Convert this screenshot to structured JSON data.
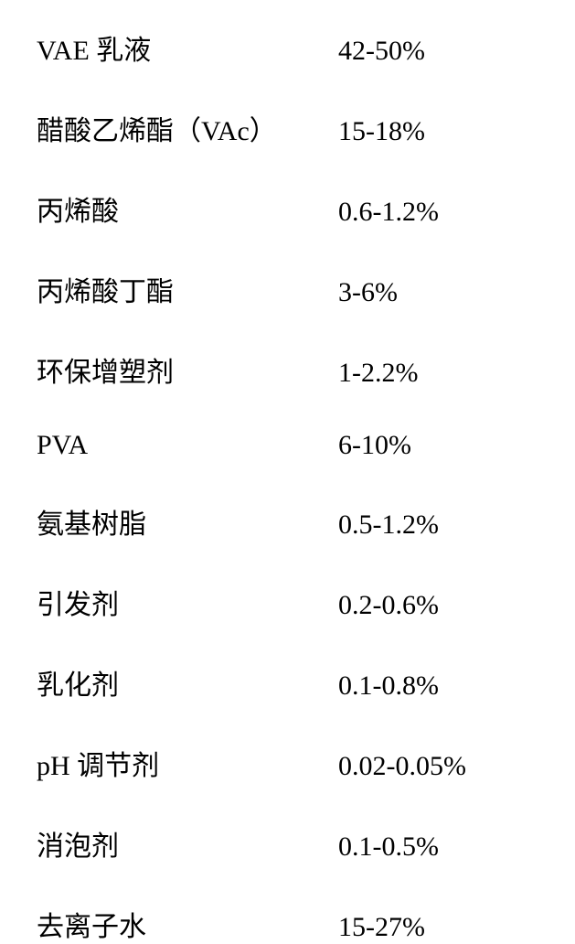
{
  "composition": {
    "type": "table",
    "background_color": "#ffffff",
    "text_color": "#000000",
    "font_size": 30,
    "ingredient_column_width": 330,
    "row_gap": 44,
    "rows": [
      {
        "ingredient": "VAE 乳液",
        "percentage": "42-50%"
      },
      {
        "ingredient": "醋酸乙烯酯（VAc）",
        "percentage": "15-18%"
      },
      {
        "ingredient": "丙烯酸",
        "percentage": "0.6-1.2%"
      },
      {
        "ingredient": "丙烯酸丁酯",
        "percentage": "3-6%"
      },
      {
        "ingredient": "环保增塑剂",
        "percentage": "1-2.2%"
      },
      {
        "ingredient": "PVA",
        "percentage": "6-10%"
      },
      {
        "ingredient": "氨基树脂",
        "percentage": "0.5-1.2%"
      },
      {
        "ingredient": "引发剂",
        "percentage": "0.2-0.6%"
      },
      {
        "ingredient": "乳化剂",
        "percentage": "0.1-0.8%"
      },
      {
        "ingredient": "pH 调节剂",
        "percentage": "0.02-0.05%"
      },
      {
        "ingredient": "消泡剂",
        "percentage": "0.1-0.5%"
      },
      {
        "ingredient": "去离子水",
        "percentage": "15-27%"
      }
    ]
  }
}
